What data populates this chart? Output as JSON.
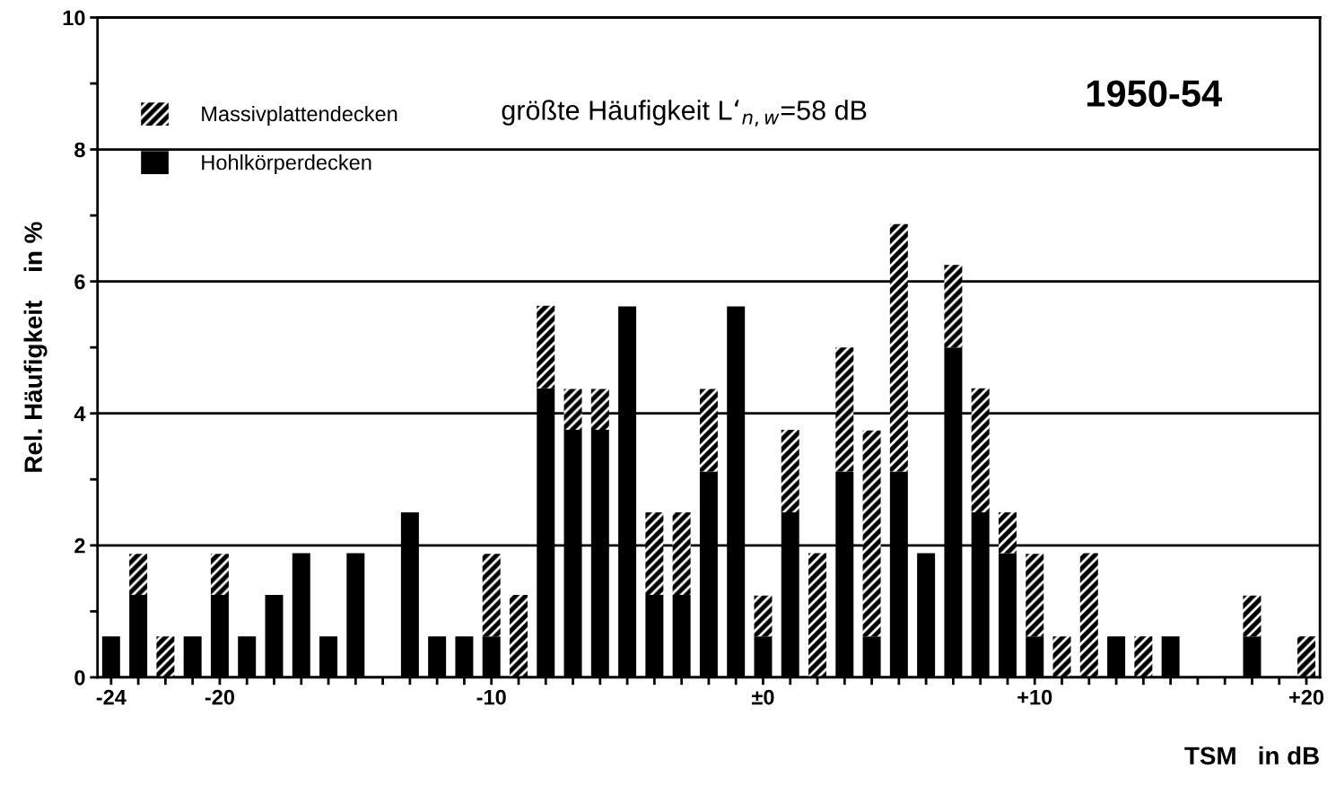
{
  "chart_data": {
    "type": "bar",
    "stacked": true,
    "title": "1950-54",
    "xlabel": "TSM   in dB",
    "ylabel": "Rel. Häufigkeit    in %",
    "x": [
      -24,
      -23,
      -22,
      -21,
      -20,
      -19,
      -18,
      -17,
      -16,
      -15,
      -14,
      -13,
      -12,
      -11,
      -10,
      -9,
      -8,
      -7,
      -6,
      -5,
      -4,
      -3,
      -2,
      -1,
      0,
      1,
      2,
      3,
      4,
      5,
      6,
      7,
      8,
      9,
      10,
      11,
      12,
      13,
      14,
      15,
      16,
      17,
      18,
      19,
      20
    ],
    "series": [
      {
        "name": "Hohlkörperdecken",
        "color": "#000000",
        "values": [
          0.62,
          1.25,
          null,
          0.62,
          1.25,
          0.62,
          1.25,
          1.88,
          0.62,
          1.88,
          null,
          2.5,
          0.62,
          0.62,
          0.62,
          null,
          4.38,
          3.75,
          3.75,
          5.62,
          1.25,
          1.25,
          3.12,
          5.62,
          0.62,
          2.5,
          null,
          3.12,
          0.62,
          3.12,
          1.88,
          5.0,
          2.5,
          1.88,
          0.62,
          null,
          null,
          0.62,
          null,
          0.62,
          null,
          null,
          0.62,
          null,
          null
        ]
      },
      {
        "name": "Massivplattendecken",
        "color": "#000000",
        "values": [
          null,
          0.62,
          0.62,
          null,
          0.62,
          null,
          null,
          null,
          null,
          null,
          null,
          null,
          null,
          null,
          1.25,
          1.25,
          1.25,
          0.62,
          0.62,
          null,
          1.25,
          1.25,
          1.25,
          null,
          0.62,
          1.25,
          1.88,
          1.88,
          3.12,
          3.75,
          null,
          1.25,
          1.88,
          0.62,
          1.25,
          0.62,
          1.88,
          null,
          0.62,
          null,
          null,
          null,
          0.62,
          null,
          0.62
        ]
      }
    ],
    "xlim": [
      -24.5,
      20.5
    ],
    "xticks": [
      {
        "value": -24,
        "label": "-24"
      },
      {
        "value": -23,
        "label": null
      },
      {
        "value": -22,
        "label": null
      },
      {
        "value": -21,
        "label": null
      },
      {
        "value": -20,
        "label": "-20"
      },
      {
        "value": -19,
        "label": null
      },
      {
        "value": -18,
        "label": null
      },
      {
        "value": -17,
        "label": null
      },
      {
        "value": -16,
        "label": null
      },
      {
        "value": -15,
        "label": null
      },
      {
        "value": -14,
        "label": null
      },
      {
        "value": -13,
        "label": null
      },
      {
        "value": -12,
        "label": null
      },
      {
        "value": -11,
        "label": null
      },
      {
        "value": -10,
        "label": "-10"
      },
      {
        "value": -9,
        "label": null
      },
      {
        "value": -8,
        "label": null
      },
      {
        "value": -7,
        "label": null
      },
      {
        "value": -6,
        "label": null
      },
      {
        "value": -5,
        "label": null
      },
      {
        "value": -4,
        "label": null
      },
      {
        "value": -3,
        "label": null
      },
      {
        "value": -2,
        "label": null
      },
      {
        "value": -1,
        "label": null
      },
      {
        "value": 0,
        "label": "±0"
      },
      {
        "value": 1,
        "label": null
      },
      {
        "value": 2,
        "label": null
      },
      {
        "value": 3,
        "label": null
      },
      {
        "value": 4,
        "label": null
      },
      {
        "value": 5,
        "label": null
      },
      {
        "value": 6,
        "label": null
      },
      {
        "value": 7,
        "label": null
      },
      {
        "value": 8,
        "label": null
      },
      {
        "value": 9,
        "label": null
      },
      {
        "value": 10,
        "label": "+10"
      },
      {
        "value": 11,
        "label": null
      },
      {
        "value": 12,
        "label": null
      },
      {
        "value": 13,
        "label": null
      },
      {
        "value": 14,
        "label": null
      },
      {
        "value": 15,
        "label": null
      },
      {
        "value": 16,
        "label": null
      },
      {
        "value": 17,
        "label": null
      },
      {
        "value": 18,
        "label": null
      },
      {
        "value": 19,
        "label": null
      },
      {
        "value": 20,
        "label": "+20"
      }
    ],
    "ylim": [
      0,
      10
    ],
    "yticks": [
      0,
      {
        "value": 1,
        "label": null
      },
      2,
      {
        "value": 3,
        "label": null
      },
      4,
      {
        "value": 5,
        "label": null
      },
      6,
      {
        "value": 7,
        "label": null
      },
      8,
      {
        "value": 9,
        "label": null
      },
      10
    ],
    "grid": "y",
    "legend": "top left",
    "annotations": [
      "größte Häufigkeit L‘$_{n,w}$=58 dB"
    ]
  }
}
